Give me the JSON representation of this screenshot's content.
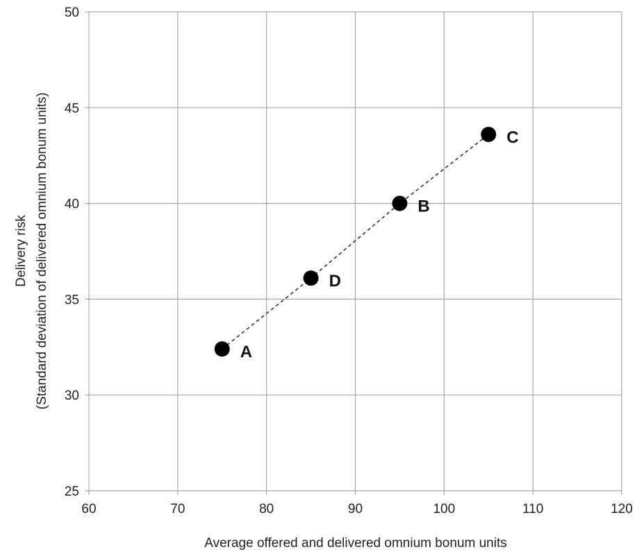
{
  "chart_data": {
    "type": "scatter",
    "title": "",
    "xlabel": "Average offered and delivered omnium bonum units",
    "ylabel_lines": [
      "Delivery risk",
      "(Standard deviation of delivered omnium bonum units)"
    ],
    "xlim": [
      60,
      120
    ],
    "ylim": [
      25,
      50
    ],
    "xticks": [
      60,
      70,
      80,
      90,
      100,
      110,
      120
    ],
    "yticks": [
      25,
      30,
      35,
      40,
      45,
      50
    ],
    "grid": true,
    "legend": "none",
    "points": [
      {
        "label": "A",
        "x": 75,
        "y": 32.4
      },
      {
        "label": "D",
        "x": 85,
        "y": 36.1
      },
      {
        "label": "B",
        "x": 95,
        "y": 40.0
      },
      {
        "label": "C",
        "x": 105,
        "y": 43.6
      }
    ],
    "connector": {
      "order": [
        "A",
        "D",
        "B",
        "C"
      ],
      "style": "dashed"
    },
    "colors": {
      "point": "#000000",
      "grid": "#a6a6a6",
      "connector": "#333333"
    }
  }
}
